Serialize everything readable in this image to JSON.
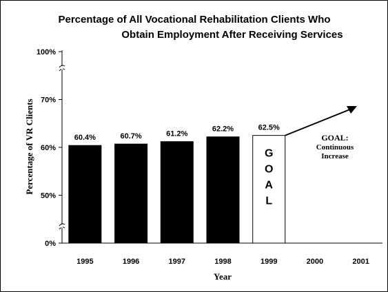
{
  "chart_data": {
    "type": "bar",
    "title": [
      "Percentage of All Vocational Rehabilitation Clients Who",
      "Obtain Employment After Receiving Services"
    ],
    "x_label": "Year",
    "y_label": "Percentage of VR Clients",
    "categories": [
      "1995",
      "1996",
      "1997",
      "1998",
      "1999",
      "2000",
      "2001"
    ],
    "values": [
      60.4,
      60.7,
      61.2,
      62.2,
      62.5,
      null,
      null
    ],
    "value_labels": [
      "60.4%",
      "60.7%",
      "61.2%",
      "62.2%",
      "62.5%",
      null,
      null
    ],
    "colors": [
      "#000000",
      "#000000",
      "#000000",
      "#000000",
      "#ffffff",
      null,
      null
    ],
    "bar_text": {
      "index": 4,
      "text": "GOAL"
    },
    "annotation": [
      "GOAL:",
      "Continuous",
      "Increase"
    ],
    "ylim": [
      0,
      100
    ],
    "yticks": [
      {
        "value": 0,
        "label": "0%"
      },
      {
        "value": 50,
        "label": "50%"
      },
      {
        "value": 60,
        "label": "60%"
      },
      {
        "value": 70,
        "label": "70%"
      },
      {
        "value": 100,
        "label": "100%"
      }
    ],
    "axis_breaks": [
      [
        0,
        50
      ],
      [
        70,
        100
      ]
    ]
  }
}
